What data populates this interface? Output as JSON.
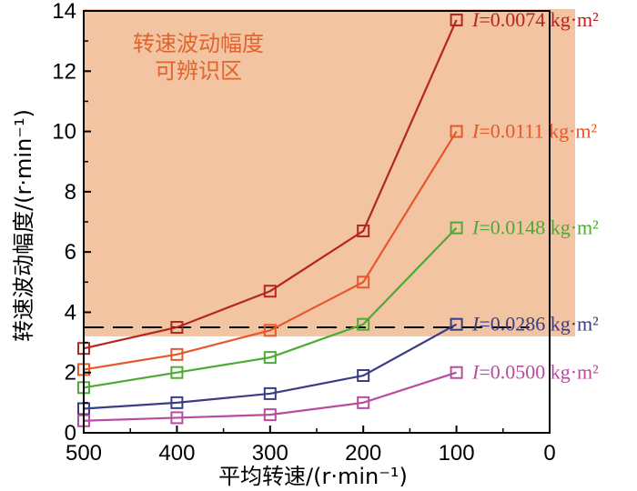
{
  "chart_data": {
    "type": "line",
    "x_axis": {
      "label": "平均转速/(r·min⁻¹)",
      "ticks": [
        "500",
        "400",
        "300",
        "200",
        "100",
        "0"
      ],
      "range": [
        500,
        0
      ],
      "reversed": true
    },
    "y_axis": {
      "label": "转速波动幅度/(r·min⁻¹)",
      "ticks": [
        "0",
        "2",
        "4",
        "6",
        "8",
        "10",
        "12",
        "14"
      ],
      "range": [
        0,
        14
      ]
    },
    "x": [
      500,
      400,
      300,
      200,
      100
    ],
    "series": [
      {
        "name": "I=0.0074 kg·m²",
        "italic": "I",
        "rest": "=0.0074 kg·m²",
        "color": "#b5261e",
        "values": [
          2.8,
          3.5,
          4.7,
          6.7,
          13.7
        ]
      },
      {
        "name": "I=0.0111 kg·m²",
        "italic": "I",
        "rest": "=0.0111 kg·m²",
        "color": "#e8562a",
        "values": [
          2.1,
          2.6,
          3.4,
          5.0,
          10.0
        ]
      },
      {
        "name": "I=0.0148 kg·m²",
        "italic": "I",
        "rest": "=0.0148 kg·m²",
        "color": "#4daa35",
        "values": [
          1.5,
          2.0,
          2.5,
          3.6,
          6.8
        ]
      },
      {
        "name": "I=0.0286 kg·m²",
        "italic": "I",
        "rest": "=0.0286 kg·m²",
        "color": "#3b3c86",
        "values": [
          0.8,
          1.0,
          1.3,
          1.9,
          3.6
        ]
      },
      {
        "name": "I=0.0500 kg·m²",
        "italic": "I",
        "rest": "=0.0500 kg·m²",
        "color": "#b94c9e",
        "values": [
          0.4,
          0.5,
          0.6,
          1.0,
          2.0
        ]
      }
    ],
    "region": {
      "label_line1": "转速波动幅度",
      "label_line2": "可辨识区",
      "color": "#f2c4a1",
      "text_color": "#e0642d",
      "y_from": 3.2,
      "y_to": 14
    },
    "threshold": {
      "y": 3.5,
      "x_from": 500,
      "x_to": 100,
      "style": "dashed"
    },
    "grid": false,
    "marker": "square"
  }
}
